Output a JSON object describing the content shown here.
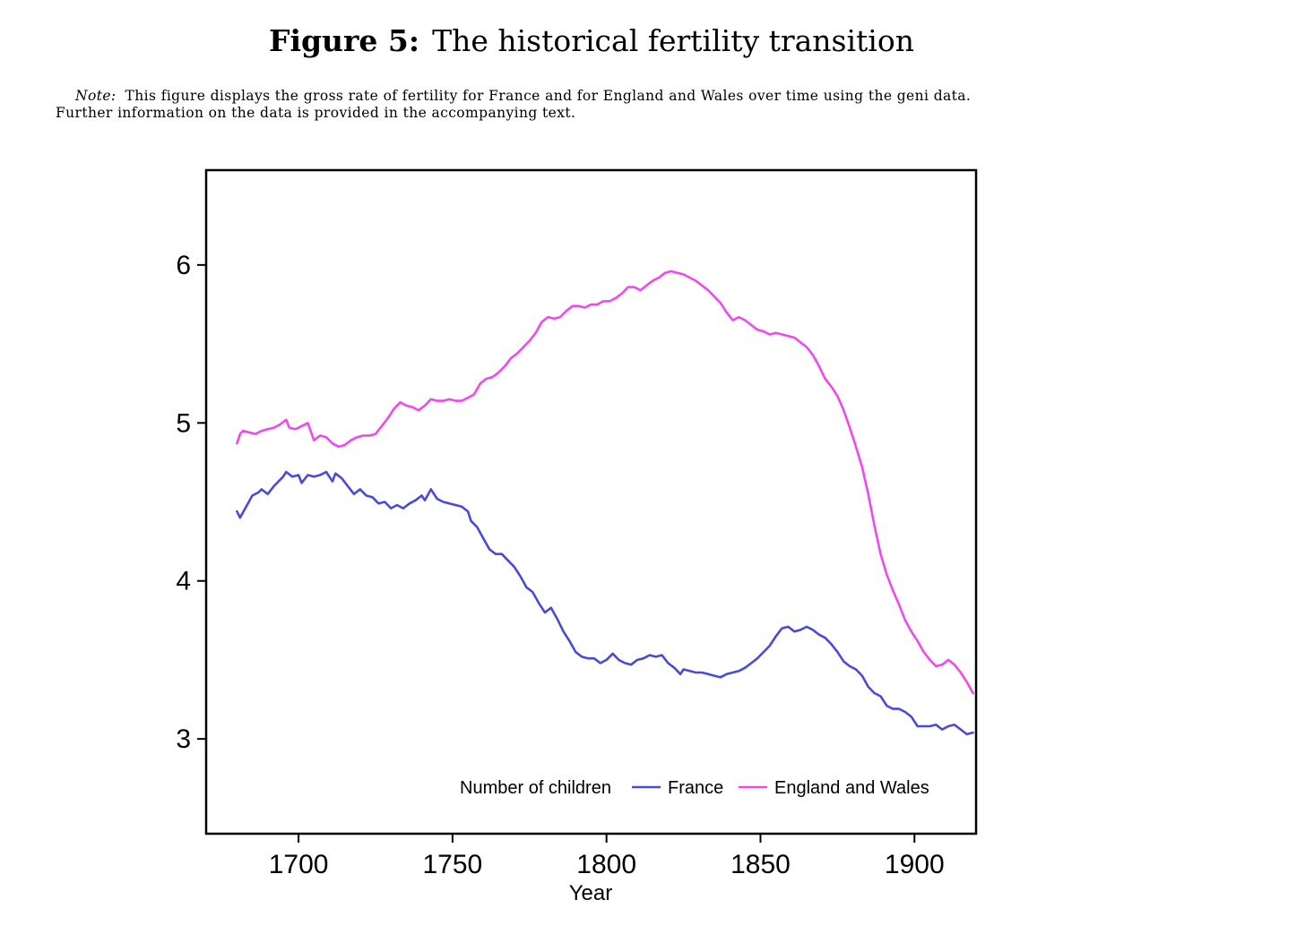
{
  "figure": {
    "label": "Figure 5:",
    "title": "The historical fertility transition",
    "note_label": "Note:",
    "note_line1": "This figure displays the gross rate of fertility for France and for England and Wales over time using the geni data.",
    "note_line2": "Further information on the data is provided in the accompanying text."
  },
  "chart_data": {
    "type": "line",
    "title": "",
    "xlabel": "Year",
    "ylabel": "",
    "xlim": [
      1670,
      1920
    ],
    "ylim": [
      2.4,
      6.6
    ],
    "xticks": [
      1700,
      1750,
      1800,
      1850,
      1900
    ],
    "yticks": [
      3,
      4,
      5,
      6
    ],
    "grid": false,
    "legend": {
      "position": "bottom-right",
      "title": "Number of children"
    },
    "series": [
      {
        "name": "France",
        "color": "#4a4ad8",
        "points": [
          [
            1680,
            4.44
          ],
          [
            1681,
            4.4
          ],
          [
            1683,
            4.47
          ],
          [
            1685,
            4.54
          ],
          [
            1687,
            4.56
          ],
          [
            1688,
            4.58
          ],
          [
            1690,
            4.55
          ],
          [
            1692,
            4.6
          ],
          [
            1694,
            4.64
          ],
          [
            1695,
            4.66
          ],
          [
            1696,
            4.69
          ],
          [
            1698,
            4.66
          ],
          [
            1700,
            4.67
          ],
          [
            1701,
            4.62
          ],
          [
            1703,
            4.67
          ],
          [
            1705,
            4.66
          ],
          [
            1707,
            4.67
          ],
          [
            1709,
            4.69
          ],
          [
            1711,
            4.63
          ],
          [
            1712,
            4.68
          ],
          [
            1714,
            4.65
          ],
          [
            1716,
            4.6
          ],
          [
            1718,
            4.55
          ],
          [
            1720,
            4.58
          ],
          [
            1722,
            4.54
          ],
          [
            1724,
            4.53
          ],
          [
            1726,
            4.49
          ],
          [
            1728,
            4.5
          ],
          [
            1730,
            4.46
          ],
          [
            1732,
            4.48
          ],
          [
            1734,
            4.46
          ],
          [
            1736,
            4.49
          ],
          [
            1738,
            4.51
          ],
          [
            1740,
            4.54
          ],
          [
            1741,
            4.51
          ],
          [
            1743,
            4.58
          ],
          [
            1745,
            4.52
          ],
          [
            1747,
            4.5
          ],
          [
            1749,
            4.49
          ],
          [
            1751,
            4.48
          ],
          [
            1753,
            4.47
          ],
          [
            1755,
            4.44
          ],
          [
            1756,
            4.38
          ],
          [
            1758,
            4.34
          ],
          [
            1760,
            4.27
          ],
          [
            1762,
            4.2
          ],
          [
            1764,
            4.17
          ],
          [
            1766,
            4.17
          ],
          [
            1768,
            4.13
          ],
          [
            1770,
            4.09
          ],
          [
            1772,
            4.03
          ],
          [
            1774,
            3.96
          ],
          [
            1776,
            3.93
          ],
          [
            1778,
            3.86
          ],
          [
            1780,
            3.8
          ],
          [
            1782,
            3.83
          ],
          [
            1784,
            3.76
          ],
          [
            1786,
            3.68
          ],
          [
            1788,
            3.62
          ],
          [
            1790,
            3.55
          ],
          [
            1792,
            3.52
          ],
          [
            1794,
            3.51
          ],
          [
            1796,
            3.51
          ],
          [
            1798,
            3.48
          ],
          [
            1800,
            3.5
          ],
          [
            1802,
            3.54
          ],
          [
            1804,
            3.5
          ],
          [
            1806,
            3.48
          ],
          [
            1808,
            3.47
          ],
          [
            1810,
            3.5
          ],
          [
            1812,
            3.51
          ],
          [
            1814,
            3.53
          ],
          [
            1816,
            3.52
          ],
          [
            1818,
            3.53
          ],
          [
            1820,
            3.48
          ],
          [
            1822,
            3.45
          ],
          [
            1824,
            3.41
          ],
          [
            1825,
            3.44
          ],
          [
            1827,
            3.43
          ],
          [
            1829,
            3.42
          ],
          [
            1831,
            3.42
          ],
          [
            1833,
            3.41
          ],
          [
            1835,
            3.4
          ],
          [
            1837,
            3.39
          ],
          [
            1839,
            3.41
          ],
          [
            1841,
            3.42
          ],
          [
            1843,
            3.43
          ],
          [
            1845,
            3.45
          ],
          [
            1847,
            3.48
          ],
          [
            1849,
            3.51
          ],
          [
            1851,
            3.55
          ],
          [
            1853,
            3.59
          ],
          [
            1855,
            3.65
          ],
          [
            1857,
            3.7
          ],
          [
            1859,
            3.71
          ],
          [
            1861,
            3.68
          ],
          [
            1863,
            3.69
          ],
          [
            1865,
            3.71
          ],
          [
            1867,
            3.69
          ],
          [
            1869,
            3.66
          ],
          [
            1871,
            3.64
          ],
          [
            1873,
            3.6
          ],
          [
            1875,
            3.55
          ],
          [
            1877,
            3.49
          ],
          [
            1879,
            3.46
          ],
          [
            1881,
            3.44
          ],
          [
            1883,
            3.4
          ],
          [
            1885,
            3.33
          ],
          [
            1887,
            3.29
          ],
          [
            1889,
            3.27
          ],
          [
            1891,
            3.21
          ],
          [
            1893,
            3.19
          ],
          [
            1895,
            3.19
          ],
          [
            1897,
            3.17
          ],
          [
            1899,
            3.14
          ],
          [
            1901,
            3.08
          ],
          [
            1903,
            3.08
          ],
          [
            1905,
            3.08
          ],
          [
            1907,
            3.09
          ],
          [
            1909,
            3.06
          ],
          [
            1911,
            3.08
          ],
          [
            1913,
            3.09
          ],
          [
            1915,
            3.06
          ],
          [
            1917,
            3.03
          ],
          [
            1919,
            3.04
          ]
        ]
      },
      {
        "name": "England and Wales",
        "color": "#f048ee",
        "points": [
          [
            1680,
            4.87
          ],
          [
            1681,
            4.93
          ],
          [
            1682,
            4.95
          ],
          [
            1684,
            4.94
          ],
          [
            1686,
            4.93
          ],
          [
            1688,
            4.95
          ],
          [
            1690,
            4.96
          ],
          [
            1692,
            4.97
          ],
          [
            1694,
            4.99
          ],
          [
            1696,
            5.02
          ],
          [
            1697,
            4.97
          ],
          [
            1699,
            4.96
          ],
          [
            1701,
            4.98
          ],
          [
            1703,
            5.0
          ],
          [
            1705,
            4.89
          ],
          [
            1707,
            4.92
          ],
          [
            1709,
            4.91
          ],
          [
            1711,
            4.87
          ],
          [
            1713,
            4.85
          ],
          [
            1715,
            4.86
          ],
          [
            1717,
            4.89
          ],
          [
            1719,
            4.91
          ],
          [
            1721,
            4.92
          ],
          [
            1723,
            4.92
          ],
          [
            1725,
            4.93
          ],
          [
            1727,
            4.98
          ],
          [
            1729,
            5.03
          ],
          [
            1731,
            5.09
          ],
          [
            1733,
            5.13
          ],
          [
            1735,
            5.11
          ],
          [
            1737,
            5.1
          ],
          [
            1739,
            5.08
          ],
          [
            1741,
            5.11
          ],
          [
            1743,
            5.15
          ],
          [
            1745,
            5.14
          ],
          [
            1747,
            5.14
          ],
          [
            1749,
            5.15
          ],
          [
            1751,
            5.14
          ],
          [
            1753,
            5.14
          ],
          [
            1755,
            5.16
          ],
          [
            1757,
            5.18
          ],
          [
            1759,
            5.25
          ],
          [
            1761,
            5.28
          ],
          [
            1763,
            5.29
          ],
          [
            1765,
            5.32
          ],
          [
            1767,
            5.36
          ],
          [
            1769,
            5.41
          ],
          [
            1771,
            5.44
          ],
          [
            1773,
            5.48
          ],
          [
            1775,
            5.52
          ],
          [
            1777,
            5.57
          ],
          [
            1779,
            5.64
          ],
          [
            1781,
            5.67
          ],
          [
            1783,
            5.66
          ],
          [
            1785,
            5.67
          ],
          [
            1787,
            5.71
          ],
          [
            1789,
            5.74
          ],
          [
            1791,
            5.74
          ],
          [
            1793,
            5.73
          ],
          [
            1795,
            5.75
          ],
          [
            1797,
            5.75
          ],
          [
            1799,
            5.77
          ],
          [
            1801,
            5.77
          ],
          [
            1803,
            5.79
          ],
          [
            1805,
            5.82
          ],
          [
            1807,
            5.86
          ],
          [
            1809,
            5.86
          ],
          [
            1811,
            5.84
          ],
          [
            1813,
            5.87
          ],
          [
            1815,
            5.9
          ],
          [
            1817,
            5.92
          ],
          [
            1819,
            5.95
          ],
          [
            1821,
            5.96
          ],
          [
            1823,
            5.95
          ],
          [
            1825,
            5.94
          ],
          [
            1827,
            5.92
          ],
          [
            1829,
            5.9
          ],
          [
            1831,
            5.87
          ],
          [
            1833,
            5.84
          ],
          [
            1835,
            5.8
          ],
          [
            1837,
            5.76
          ],
          [
            1839,
            5.7
          ],
          [
            1841,
            5.65
          ],
          [
            1843,
            5.67
          ],
          [
            1845,
            5.65
          ],
          [
            1847,
            5.62
          ],
          [
            1849,
            5.59
          ],
          [
            1851,
            5.58
          ],
          [
            1853,
            5.56
          ],
          [
            1855,
            5.57
          ],
          [
            1857,
            5.56
          ],
          [
            1859,
            5.55
          ],
          [
            1861,
            5.54
          ],
          [
            1863,
            5.51
          ],
          [
            1865,
            5.48
          ],
          [
            1867,
            5.43
          ],
          [
            1869,
            5.36
          ],
          [
            1871,
            5.28
          ],
          [
            1873,
            5.23
          ],
          [
            1875,
            5.17
          ],
          [
            1877,
            5.08
          ],
          [
            1879,
            4.97
          ],
          [
            1881,
            4.85
          ],
          [
            1883,
            4.72
          ],
          [
            1885,
            4.55
          ],
          [
            1887,
            4.35
          ],
          [
            1889,
            4.17
          ],
          [
            1891,
            4.04
          ],
          [
            1893,
            3.94
          ],
          [
            1895,
            3.85
          ],
          [
            1897,
            3.75
          ],
          [
            1899,
            3.68
          ],
          [
            1901,
            3.62
          ],
          [
            1903,
            3.55
          ],
          [
            1905,
            3.5
          ],
          [
            1907,
            3.46
          ],
          [
            1909,
            3.47
          ],
          [
            1911,
            3.5
          ],
          [
            1913,
            3.47
          ],
          [
            1915,
            3.42
          ],
          [
            1917,
            3.36
          ],
          [
            1919,
            3.29
          ]
        ]
      }
    ]
  }
}
